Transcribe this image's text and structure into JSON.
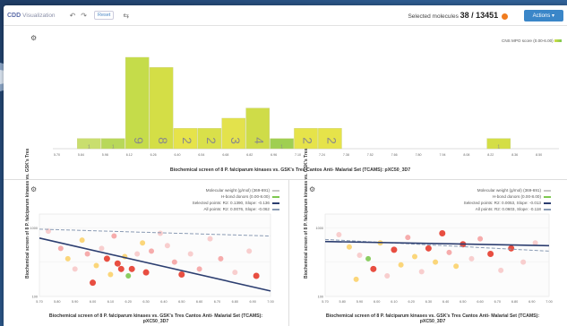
{
  "app": {
    "logo": "CDD",
    "title": "Visualization",
    "reset_label": "Reset",
    "selected_label": "Selected molecules",
    "selected_count": "38 / 13451",
    "actions_label": "Actions"
  },
  "histogram": {
    "legend": "CNS MPO score (0.00-6.00)",
    "xlabel": "Biochemical screen of 8 P. falciparum kinases vs. GSK's Tres Cantos Anti- Malarial Set (TCAMS): pXC50_3D7",
    "chart_data": {
      "type": "bar",
      "categories": [
        "5.70",
        "5.84",
        "5.98",
        "6.12",
        "6.26",
        "6.40",
        "6.54",
        "6.68",
        "6.82",
        "6.96",
        "7.10",
        "7.24",
        "7.38",
        "7.52",
        "7.66",
        "7.80",
        "7.94",
        "8.08",
        "8.22",
        "8.36",
        "8.50"
      ],
      "values": [
        0,
        1,
        1,
        9,
        8,
        2,
        2,
        3,
        4,
        1,
        2,
        2,
        0,
        0,
        0,
        0,
        0,
        0,
        1,
        0,
        0
      ],
      "bar_labels": [
        "",
        "1",
        "1",
        "9",
        "8",
        "2",
        "2",
        "3",
        "4",
        "1",
        "2",
        "2",
        "",
        "",
        "",
        "",
        "",
        "",
        "1",
        "",
        ""
      ],
      "tick_labels": [
        "5.70",
        "5.84",
        "5.98",
        "6.12",
        "6.26",
        "6.40",
        "6.54",
        "6.68",
        "6.82",
        "6.96",
        "7.10",
        "7.24",
        "7.38",
        "7.52",
        "7.66",
        "7.80",
        "7.94",
        "8.08",
        "8.22",
        "8.36",
        "8.50"
      ],
      "colors": [
        "#e8f0a0",
        "#c9de6e",
        "#b8d85a",
        "#c5dc4a",
        "#d4de46",
        "#e6e34a",
        "#d9e04a",
        "#e3e24c",
        "#cfdc48",
        "#9fcf52",
        "#e6e34a",
        "#e6e34a",
        "#e8f0a0",
        "#e8f0a0",
        "#e8f0a0",
        "#e8f0a0",
        "#e8f0a0",
        "#e8f0a0",
        "#d4de46",
        "#e8f0a0",
        "#e8f0a0"
      ]
    }
  },
  "scatter_left": {
    "legend": [
      "Molecular weight (g/mol) (369-691)",
      "H-bond donors (0.00-8.00)",
      "Selected points: R2: 0.1390, Slope: -0.136",
      "All points: R2: 0.0076, Slope: -0.062"
    ],
    "xlabel": "Biochemical screen of 8 P. falciparum kinases vs. GSK's Tres Cantos Anti- Malarial Set (TCAMS): pXC50_3D7",
    "ylabel": "Biochemical screen of 8 P. falciparum kinases vs. GSK's Tres",
    "chart_data": {
      "type": "scatter",
      "x_ticks": [
        "5.70",
        "5.80",
        "5.90",
        "6.00",
        "6.10",
        "6.20",
        "6.30",
        "6.40",
        "6.50",
        "6.60",
        "6.70",
        "6.80",
        "6.90",
        "7.00"
      ],
      "y_ticks": [
        "1000",
        "100"
      ],
      "xlim": [
        5.7,
        7.0
      ],
      "ylim_log": [
        2,
        3.2
      ],
      "points": [
        {
          "x": 5.75,
          "y": 2.95,
          "c": "#f7c9c9",
          "r": 3
        },
        {
          "x": 5.82,
          "y": 2.7,
          "c": "#f5a3a3",
          "r": 3
        },
        {
          "x": 5.86,
          "y": 2.55,
          "c": "#fbd26b",
          "r": 3
        },
        {
          "x": 5.9,
          "y": 2.4,
          "c": "#f7c9c9",
          "r": 3
        },
        {
          "x": 5.94,
          "y": 2.82,
          "c": "#fbd26b",
          "r": 3
        },
        {
          "x": 5.97,
          "y": 2.62,
          "c": "#f5a3a3",
          "r": 3
        },
        {
          "x": 6.0,
          "y": 2.2,
          "c": "#e53b2c",
          "r": 3.5
        },
        {
          "x": 6.02,
          "y": 2.45,
          "c": "#fbd26b",
          "r": 3
        },
        {
          "x": 6.05,
          "y": 2.7,
          "c": "#f7c9c9",
          "r": 3
        },
        {
          "x": 6.08,
          "y": 2.55,
          "c": "#e53b2c",
          "r": 3.5
        },
        {
          "x": 6.1,
          "y": 2.32,
          "c": "#fbd26b",
          "r": 3
        },
        {
          "x": 6.12,
          "y": 2.88,
          "c": "#f5a3a3",
          "r": 3
        },
        {
          "x": 6.14,
          "y": 2.48,
          "c": "#e53b2c",
          "r": 3.5
        },
        {
          "x": 6.16,
          "y": 2.4,
          "c": "#e53b2c",
          "r": 3.5
        },
        {
          "x": 6.18,
          "y": 2.58,
          "c": "#fbd26b",
          "r": 3
        },
        {
          "x": 6.2,
          "y": 2.3,
          "c": "#7ec850",
          "r": 3
        },
        {
          "x": 6.22,
          "y": 2.4,
          "c": "#e53b2c",
          "r": 3.5
        },
        {
          "x": 6.25,
          "y": 2.62,
          "c": "#f7c9c9",
          "r": 3
        },
        {
          "x": 6.28,
          "y": 2.78,
          "c": "#fbd26b",
          "r": 3
        },
        {
          "x": 6.3,
          "y": 2.35,
          "c": "#e53b2c",
          "r": 3.5
        },
        {
          "x": 6.33,
          "y": 2.66,
          "c": "#f5a3a3",
          "r": 3
        },
        {
          "x": 6.38,
          "y": 2.92,
          "c": "#f7c9c9",
          "r": 3
        },
        {
          "x": 6.42,
          "y": 2.74,
          "c": "#f7c9c9",
          "r": 3
        },
        {
          "x": 6.46,
          "y": 2.5,
          "c": "#f5a3a3",
          "r": 3
        },
        {
          "x": 6.5,
          "y": 2.32,
          "c": "#e53b2c",
          "r": 3.5
        },
        {
          "x": 6.55,
          "y": 2.62,
          "c": "#f7c9c9",
          "r": 3
        },
        {
          "x": 6.6,
          "y": 2.4,
          "c": "#f5a3a3",
          "r": 3
        },
        {
          "x": 6.66,
          "y": 2.84,
          "c": "#f7c9c9",
          "r": 3
        },
        {
          "x": 6.72,
          "y": 2.55,
          "c": "#f5a3a3",
          "r": 3
        },
        {
          "x": 6.8,
          "y": 2.35,
          "c": "#f7c9c9",
          "r": 3
        },
        {
          "x": 6.88,
          "y": 2.66,
          "c": "#f7c9c9",
          "r": 3
        },
        {
          "x": 6.92,
          "y": 2.3,
          "c": "#e53b2c",
          "r": 3.5
        }
      ],
      "fit_selected": {
        "x1": 5.7,
        "y1": 2.85,
        "x2": 7.0,
        "y2": 2.08,
        "color": "#2c3e70"
      },
      "fit_all": {
        "x1": 5.7,
        "y1": 2.98,
        "x2": 7.0,
        "y2": 2.88,
        "color": "#8a9bb4"
      }
    }
  },
  "scatter_right": {
    "legend": [
      "Molecular weight (g/mol) (369-691)",
      "H-bond donors (0.00-8.00)",
      "Selected points: R2: 0.0053, Slope: -0.013",
      "All points: R2: 0.0603, Slope: -0.118"
    ],
    "xlabel": "Biochemical screen of 8 P. falciparum kinases vs. GSK's Tres Cantos Anti- Malarial Set (TCAMS): pXC50_3D7",
    "ylabel": "Biochemical screen of 8 P. falciparum kinases vs. GSK's Tres",
    "chart_data": {
      "type": "scatter",
      "x_ticks": [
        "5.70",
        "5.80",
        "5.90",
        "6.00",
        "6.10",
        "6.20",
        "6.30",
        "6.40",
        "6.50",
        "6.60",
        "6.70",
        "6.80",
        "6.90",
        "7.00"
      ],
      "y_ticks": [
        "1000",
        "100"
      ],
      "xlim": [
        5.7,
        7.0
      ],
      "ylim_log": [
        2,
        3.2
      ],
      "points": [
        {
          "x": 5.78,
          "y": 2.9,
          "c": "#f7c9c9",
          "r": 3
        },
        {
          "x": 5.84,
          "y": 2.72,
          "c": "#fbd26b",
          "r": 3
        },
        {
          "x": 5.9,
          "y": 2.6,
          "c": "#f7c9c9",
          "r": 3
        },
        {
          "x": 5.95,
          "y": 2.55,
          "c": "#7ec850",
          "r": 3
        },
        {
          "x": 5.98,
          "y": 2.4,
          "c": "#e53b2c",
          "r": 3.5
        },
        {
          "x": 6.02,
          "y": 2.78,
          "c": "#fbd26b",
          "r": 3
        },
        {
          "x": 6.06,
          "y": 2.3,
          "c": "#f7c9c9",
          "r": 3
        },
        {
          "x": 6.1,
          "y": 2.68,
          "c": "#e53b2c",
          "r": 3.5
        },
        {
          "x": 6.14,
          "y": 2.46,
          "c": "#fbd26b",
          "r": 3
        },
        {
          "x": 6.18,
          "y": 2.86,
          "c": "#f5a3a3",
          "r": 3
        },
        {
          "x": 6.22,
          "y": 2.58,
          "c": "#fbd26b",
          "r": 3
        },
        {
          "x": 6.26,
          "y": 2.36,
          "c": "#f7c9c9",
          "r": 3
        },
        {
          "x": 6.3,
          "y": 2.7,
          "c": "#e53b2c",
          "r": 3.5
        },
        {
          "x": 6.34,
          "y": 2.5,
          "c": "#fbd26b",
          "r": 3
        },
        {
          "x": 6.38,
          "y": 2.92,
          "c": "#e53b2c",
          "r": 3.5
        },
        {
          "x": 6.42,
          "y": 2.64,
          "c": "#f5a3a3",
          "r": 3
        },
        {
          "x": 6.46,
          "y": 2.44,
          "c": "#fbd26b",
          "r": 3
        },
        {
          "x": 6.5,
          "y": 2.76,
          "c": "#e53b2c",
          "r": 3.5
        },
        {
          "x": 6.55,
          "y": 2.55,
          "c": "#f7c9c9",
          "r": 3
        },
        {
          "x": 6.6,
          "y": 2.84,
          "c": "#f5a3a3",
          "r": 3
        },
        {
          "x": 6.66,
          "y": 2.62,
          "c": "#e53b2c",
          "r": 3.5
        },
        {
          "x": 6.72,
          "y": 2.38,
          "c": "#f7c9c9",
          "r": 3
        },
        {
          "x": 6.78,
          "y": 2.7,
          "c": "#e53b2c",
          "r": 3.5
        },
        {
          "x": 6.85,
          "y": 2.5,
          "c": "#f7c9c9",
          "r": 3
        },
        {
          "x": 6.92,
          "y": 2.78,
          "c": "#f7c9c9",
          "r": 3
        },
        {
          "x": 5.88,
          "y": 2.25,
          "c": "#fbd26b",
          "r": 3
        }
      ],
      "fit_selected": {
        "x1": 5.7,
        "y1": 2.8,
        "x2": 7.0,
        "y2": 2.74,
        "color": "#2c3e70"
      },
      "fit_all": {
        "x1": 5.7,
        "y1": 2.83,
        "x2": 7.0,
        "y2": 2.66,
        "color": "#8a9bb4"
      }
    }
  }
}
